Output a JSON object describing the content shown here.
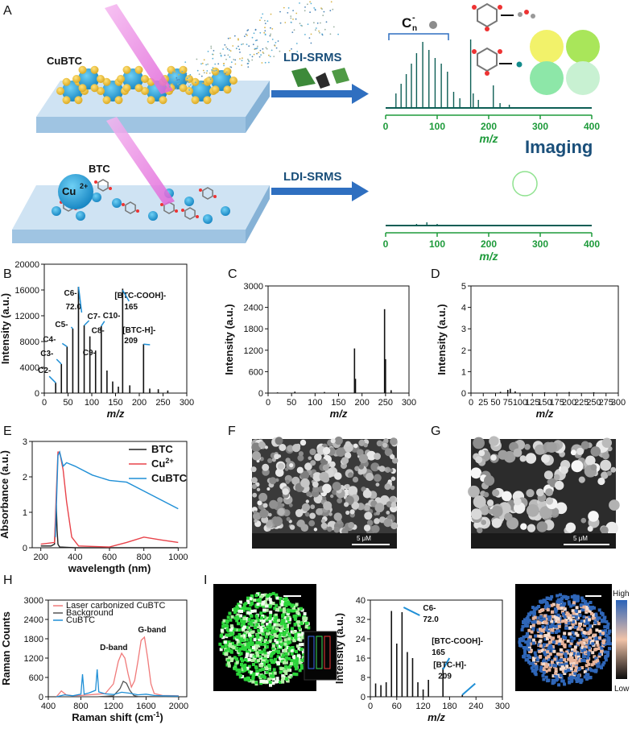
{
  "panel_letters": [
    "A",
    "B",
    "C",
    "D",
    "E",
    "F",
    "G",
    "H",
    "I"
  ],
  "panelA": {
    "cubtc_label": "CuBTC",
    "btc_label": "BTC",
    "cu_ion_base": "Cu",
    "cu_ion_sup": "2+",
    "method_top": "LDI-SRMS",
    "method_bottom": "LDI-SRMS",
    "cluster_base": "C",
    "cluster_sub": "n",
    "cluster_sup": "-",
    "imaging_label": "Imaging",
    "axis_title": "m/z",
    "ticks": [
      "0",
      "100",
      "200",
      "300",
      "400"
    ],
    "colors": {
      "spectrum": "#0d5e55",
      "axis": "#1d9a3a",
      "arrow": "#2f6fc0",
      "imaging": "#1a4f7a",
      "substrate": "#b7d3ea"
    }
  },
  "chart_data": [
    {
      "id": "B",
      "type": "bar",
      "xlabel": "m/z",
      "ylabel": "Intensity (a.u.)",
      "xlim": [
        0,
        300
      ],
      "ylim": [
        0,
        20000
      ],
      "xticks": [
        "0",
        "50",
        "100",
        "150",
        "200",
        "250",
        "300"
      ],
      "yticks": [
        "0",
        "4000",
        "8000",
        "12000",
        "16000",
        "20000"
      ],
      "peaks": [
        [
          24,
          1600
        ],
        [
          36,
          4500
        ],
        [
          48,
          7200
        ],
        [
          60,
          10000
        ],
        [
          72,
          16500
        ],
        [
          84,
          10500
        ],
        [
          96,
          8800
        ],
        [
          108,
          6600
        ],
        [
          120,
          10400
        ],
        [
          132,
          3500
        ],
        [
          144,
          1800
        ],
        [
          156,
          1000
        ],
        [
          165,
          16200
        ],
        [
          180,
          1200
        ],
        [
          209,
          7600
        ],
        [
          222,
          700
        ],
        [
          240,
          600
        ],
        [
          260,
          400
        ]
      ],
      "annotations": [
        {
          "text": "C2-",
          "x": 24,
          "y": 1600
        },
        {
          "text": "C3-",
          "x": 36,
          "y": 4500
        },
        {
          "text": "C4-",
          "x": 48,
          "y": 7200
        },
        {
          "text": "C5-",
          "x": 60,
          "y": 10000
        },
        {
          "text": "C6-",
          "x": 72,
          "y": 16500
        },
        {
          "text": "72.0",
          "x": 72,
          "y": 16500
        },
        {
          "text": "C7-",
          "x": 84,
          "y": 10500
        },
        {
          "text": "C8-",
          "x": 96,
          "y": 8800
        },
        {
          "text": "C9-",
          "x": 108,
          "y": 6600
        },
        {
          "text": "C10-",
          "x": 120,
          "y": 10400
        },
        {
          "text": "[BTC-COOH]-",
          "x": 165,
          "y": 16200
        },
        {
          "text": "165",
          "x": 165,
          "y": 16200
        },
        {
          "text": "[BTC-H]-",
          "x": 209,
          "y": 7600
        },
        {
          "text": "209",
          "x": 209,
          "y": 7600
        }
      ]
    },
    {
      "id": "C",
      "type": "bar",
      "xlabel": "m/z",
      "ylabel": "Intensity (a.u.)",
      "xlim": [
        0,
        300
      ],
      "ylim": [
        0,
        3000
      ],
      "xticks": [
        "0",
        "50",
        "100",
        "150",
        "200",
        "250",
        "300"
      ],
      "yticks": [
        "0",
        "600",
        "1200",
        "1800",
        "2400",
        "3000"
      ],
      "peaks": [
        [
          20,
          20
        ],
        [
          57,
          40
        ],
        [
          120,
          30
        ],
        [
          184,
          1250
        ],
        [
          186,
          400
        ],
        [
          248,
          2350
        ],
        [
          250,
          950
        ],
        [
          262,
          80
        ]
      ]
    },
    {
      "id": "D",
      "type": "bar",
      "xlabel": "m/z",
      "ylabel": "Intensity (a.u.)",
      "xlim": [
        0,
        300
      ],
      "ylim": [
        0,
        5
      ],
      "xticks": [
        "0",
        "25",
        "50",
        "75",
        "100",
        "125",
        "150",
        "175",
        "200",
        "225",
        "250",
        "275",
        "300"
      ],
      "yticks": [
        "0",
        "1",
        "2",
        "3",
        "4",
        "5"
      ],
      "peaks": [
        [
          60,
          0.06
        ],
        [
          75,
          0.15
        ],
        [
          80,
          0.2
        ],
        [
          90,
          0.08
        ],
        [
          150,
          0.04
        ],
        [
          200,
          0.05
        ],
        [
          250,
          0.04
        ]
      ]
    },
    {
      "id": "E",
      "type": "line",
      "xlabel": "wavelength (nm)",
      "ylabel": "Absorbance (a.u.)",
      "xlim": [
        150,
        1050
      ],
      "ylim": [
        0,
        3
      ],
      "xticks": [
        "200",
        "400",
        "600",
        "800",
        "1000"
      ],
      "yticks": [
        "0",
        "1",
        "2",
        "3"
      ],
      "series": [
        {
          "name": "BTC",
          "color": "#222222",
          "x": [
            200,
            260,
            280,
            290,
            295,
            300,
            310,
            400,
            1000
          ],
          "y": [
            0.05,
            0.05,
            0.1,
            1.2,
            0.5,
            0.1,
            0.02,
            0,
            0
          ]
        },
        {
          "name": "Cu2+",
          "color": "#e8434a",
          "x": [
            200,
            280,
            290,
            300,
            310,
            330,
            350,
            380,
            420,
            600,
            700,
            800,
            900,
            1000
          ],
          "y": [
            0.1,
            0.15,
            1.5,
            2.7,
            2.7,
            2.2,
            1.3,
            0.3,
            0.05,
            0.02,
            0.15,
            0.3,
            0.22,
            0.15
          ]
        },
        {
          "name": "CuBTC",
          "color": "#1f8fd6",
          "x": [
            285,
            300,
            310,
            330,
            350,
            400,
            500,
            600,
            700,
            800,
            900,
            1000
          ],
          "y": [
            0.3,
            2.6,
            2.7,
            2.3,
            2.4,
            2.3,
            2.05,
            1.9,
            1.85,
            1.6,
            1.35,
            1.1
          ]
        }
      ],
      "legend": [
        "BTC",
        "Cu",
        "CuBTC"
      ]
    },
    {
      "id": "H",
      "type": "line",
      "xlabel": "Raman shift (cm",
      "ylabel": "Raman Counts",
      "xlim": [
        400,
        2100
      ],
      "ylim": [
        0,
        3000
      ],
      "xticks": [
        "400",
        "800",
        "1200",
        "1600",
        "2000"
      ],
      "yticks": [
        "0",
        "600",
        "1200",
        "1800",
        "2400",
        "3000"
      ],
      "series": [
        {
          "name": "Laser carbonized CuBTC",
          "color": "#f07a7a",
          "x": [
            500,
            560,
            620,
            700,
            800,
            900,
            1000,
            1100,
            1200,
            1260,
            1300,
            1340,
            1380,
            1420,
            1460,
            1500,
            1540,
            1580,
            1620,
            1660,
            1700,
            1800,
            2000
          ],
          "y": [
            0,
            180,
            60,
            30,
            40,
            60,
            80,
            100,
            400,
            1100,
            1350,
            1200,
            700,
            300,
            500,
            1100,
            1750,
            1850,
            1200,
            400,
            100,
            40,
            30
          ]
        },
        {
          "name": "Background",
          "color": "#555555",
          "x": [
            500,
            800,
            1000,
            1200,
            1280,
            1320,
            1360,
            1400,
            1450,
            1500,
            2000
          ],
          "y": [
            0,
            0,
            0,
            30,
            250,
            480,
            420,
            200,
            40,
            10,
            0
          ]
        },
        {
          "name": "CuBTC",
          "color": "#1f8fd6",
          "x": [
            500,
            600,
            700,
            800,
            820,
            840,
            900,
            980,
            1000,
            1020,
            1100,
            1200,
            1300,
            1400,
            1500,
            1600,
            1700,
            1800,
            2000
          ],
          "y": [
            0,
            60,
            30,
            80,
            700,
            80,
            120,
            200,
            850,
            150,
            90,
            70,
            140,
            110,
            60,
            80,
            40,
            30,
            20
          ]
        }
      ],
      "annotations": [
        {
          "text": "D-band",
          "x": 1330,
          "y": 1400
        },
        {
          "text": "G-band",
          "x": 1580,
          "y": 2000
        }
      ],
      "legend": [
        "Laser carbonized CuBTC",
        "Background",
        "CuBTC"
      ]
    },
    {
      "id": "I",
      "type": "bar",
      "xlabel": "m/z",
      "ylabel": "Intensity (a.u.)",
      "xlim": [
        0,
        300
      ],
      "ylim": [
        0,
        40
      ],
      "xticks": [
        "0",
        "60",
        "120",
        "180",
        "240",
        "300"
      ],
      "yticks": [
        "0",
        "8",
        "16",
        "24",
        "32",
        "40"
      ],
      "peaks": [
        [
          12,
          5.5
        ],
        [
          24,
          4.8
        ],
        [
          36,
          6
        ],
        [
          48,
          35.5
        ],
        [
          60,
          22
        ],
        [
          72,
          35
        ],
        [
          84,
          18.5
        ],
        [
          96,
          16
        ],
        [
          108,
          6
        ],
        [
          120,
          3
        ],
        [
          132,
          7
        ],
        [
          165,
          12
        ],
        [
          209,
          0.8
        ]
      ],
      "annotations": [
        {
          "text": "C6-",
          "x": 72,
          "y": 35
        },
        {
          "text": "72.0",
          "x": 72,
          "y": 35
        },
        {
          "text": "[BTC-COOH]-",
          "x": 165,
          "y": 12
        },
        {
          "text": "165",
          "x": 165,
          "y": 12
        },
        {
          "text": "[BTC-H]-",
          "x": 209,
          "y": 0.8
        },
        {
          "text": "209",
          "x": 209,
          "y": 0.8
        }
      ]
    }
  ],
  "sem": {
    "scale_F": "5 μM",
    "scale_G": "5 μM"
  },
  "colorbar": {
    "high": "High",
    "low": "Low"
  }
}
